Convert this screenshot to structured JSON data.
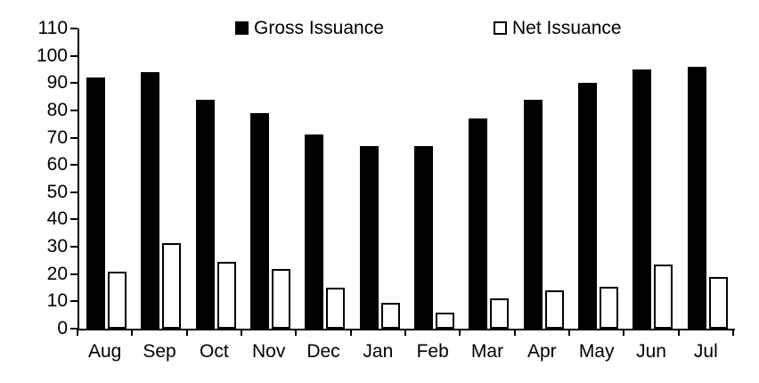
{
  "chart_data": {
    "type": "bar",
    "categories": [
      "Aug",
      "Sep",
      "Oct",
      "Nov",
      "Dec",
      "Jan",
      "Feb",
      "Mar",
      "Apr",
      "May",
      "Jun",
      "Jul"
    ],
    "series": [
      {
        "name": "Gross Issuance",
        "style": "filled-black",
        "values": [
          92,
          94,
          84,
          79,
          71,
          67,
          67,
          77,
          84,
          90,
          95,
          96
        ]
      },
      {
        "name": "Net Issuance",
        "style": "outlined-white",
        "values": [
          21,
          31.5,
          24.5,
          22,
          15,
          9.5,
          6,
          11,
          14,
          15.5,
          23.5,
          19
        ]
      }
    ],
    "title": "",
    "xlabel": "",
    "ylabel": "",
    "ylim": [
      0,
      110
    ],
    "yticks": [
      0,
      10,
      20,
      30,
      40,
      50,
      60,
      70,
      80,
      90,
      100,
      110
    ],
    "grid": false,
    "legend_position": "top"
  },
  "colors": {
    "bar_fill": "#000000",
    "bar_outline": "#000000",
    "background": "#ffffff",
    "text": "#000000"
  }
}
